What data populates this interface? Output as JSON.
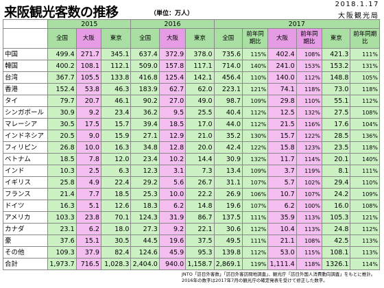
{
  "title": "来阪観光客数の推移",
  "unit": "（単位：万人）",
  "date": "2018.1.17",
  "org": "大阪観光局",
  "years": [
    "2015",
    "2016",
    "2017"
  ],
  "col_headers": {
    "total": "全国",
    "osaka": "大阪",
    "tokyo": "東京",
    "yoy": "前年同期比"
  },
  "rows": [
    {
      "c": "中国",
      "v": [
        "499.4",
        "271.7",
        "345.1",
        "637.4",
        "372.9",
        "378.0",
        "735.6",
        "115%",
        "402.4",
        "108%",
        "421.3",
        "111%"
      ]
    },
    {
      "c": "韓国",
      "v": [
        "400.2",
        "108.1",
        "112.1",
        "509.0",
        "157.8",
        "117.1",
        "714.0",
        "140%",
        "241.0",
        "153%",
        "153.2",
        "131%"
      ]
    },
    {
      "c": "台湾",
      "v": [
        "367.7",
        "105.5",
        "133.8",
        "416.8",
        "125.4",
        "142.1",
        "456.4",
        "110%",
        "140.0",
        "112%",
        "148.8",
        "105%"
      ]
    },
    {
      "c": "香港",
      "v": [
        "152.4",
        "53.8",
        "46.3",
        "183.9",
        "62.7",
        "62.0",
        "223.1",
        "121%",
        "74.1",
        "118%",
        "73.0",
        "118%"
      ]
    },
    {
      "c": "タイ",
      "v": [
        "79.7",
        "20.7",
        "46.1",
        "90.2",
        "27.0",
        "49.0",
        "98.7",
        "109%",
        "29.8",
        "110%",
        "55.1",
        "112%"
      ]
    },
    {
      "c": "シンガポール",
      "v": [
        "30.9",
        "9.2",
        "23.4",
        "36.2",
        "9.5",
        "25.5",
        "40.4",
        "112%",
        "12.5",
        "132%",
        "27.5",
        "108%"
      ]
    },
    {
      "c": "マレーシア",
      "v": [
        "30.5",
        "17.5",
        "15.7",
        "39.4",
        "18.5",
        "17.0",
        "44.0",
        "112%",
        "21.5",
        "116%",
        "17.6",
        "104%"
      ]
    },
    {
      "c": "インドネシア",
      "v": [
        "20.5",
        "9.0",
        "15.9",
        "27.1",
        "12.9",
        "21.0",
        "35.2",
        "130%",
        "15.7",
        "122%",
        "28.5",
        "136%"
      ]
    },
    {
      "c": "フィリピン",
      "v": [
        "26.8",
        "10.0",
        "16.3",
        "34.8",
        "12.8",
        "20.0",
        "42.4",
        "122%",
        "15.8",
        "123%",
        "23.5",
        "118%"
      ]
    },
    {
      "c": "ベトナム",
      "v": [
        "18.5",
        "7.8",
        "12.0",
        "23.4",
        "10.2",
        "14.4",
        "30.9",
        "132%",
        "11.7",
        "114%",
        "20.1",
        "140%"
      ]
    },
    {
      "c": "インド",
      "v": [
        "10.3",
        "2.5",
        "6.3",
        "12.3",
        "3.1",
        "7.3",
        "13.4",
        "109%",
        "3.7",
        "119%",
        "8.1",
        "111%"
      ]
    },
    {
      "c": "イギリス",
      "v": [
        "25.8",
        "4.9",
        "22.4",
        "29.2",
        "5.6",
        "26.7",
        "31.1",
        "107%",
        "5.7",
        "102%",
        "29.4",
        "110%"
      ]
    },
    {
      "c": "フランス",
      "v": [
        "21.4",
        "7.7",
        "18.5",
        "25.3",
        "10.0",
        "22.2",
        "26.9",
        "106%",
        "10.7",
        "107%",
        "24.2",
        "109%"
      ]
    },
    {
      "c": "ドイツ",
      "v": [
        "16.3",
        "5.1",
        "12.6",
        "18.3",
        "6.2",
        "14.8",
        "19.6",
        "107%",
        "6.2",
        "100%",
        "16.0",
        "108%"
      ]
    },
    {
      "c": "アメリカ",
      "v": [
        "103.3",
        "23.8",
        "70.1",
        "124.3",
        "31.9",
        "86.7",
        "137.5",
        "111%",
        "35.9",
        "113%",
        "105.3",
        "121%"
      ]
    },
    {
      "c": "カナダ",
      "v": [
        "23.1",
        "6.2",
        "18.0",
        "27.3",
        "9.2",
        "22.1",
        "30.6",
        "112%",
        "10.4",
        "113%",
        "24.8",
        "112%"
      ]
    },
    {
      "c": "豪",
      "v": [
        "37.6",
        "15.1",
        "30.5",
        "44.5",
        "19.6",
        "37.5",
        "49.5",
        "111%",
        "21.1",
        "108%",
        "42.5",
        "113%"
      ]
    },
    {
      "c": "その他",
      "v": [
        "109.3",
        "37.9",
        "82.4",
        "124.6",
        "45.9",
        "95.3",
        "139.8",
        "112%",
        "53.0",
        "115%",
        "108.1",
        "113%"
      ]
    },
    {
      "c": "合計",
      "v": [
        "1,973.7",
        "716.5",
        "1,028.3",
        "2,404.0",
        "940.0",
        "1,158.7",
        "2,869.1",
        "119%",
        "1,111.4",
        "118%",
        "1326.1",
        "114%"
      ]
    }
  ],
  "footer": [
    "JNTO「訪日外客数」「訪日外客訪問地調査」、観光庁「訪日外国人消費動向調査」をもとに推計。",
    "2016年の数字は2017年7月の観光庁の確定発表を受けて修正した数字。"
  ]
}
